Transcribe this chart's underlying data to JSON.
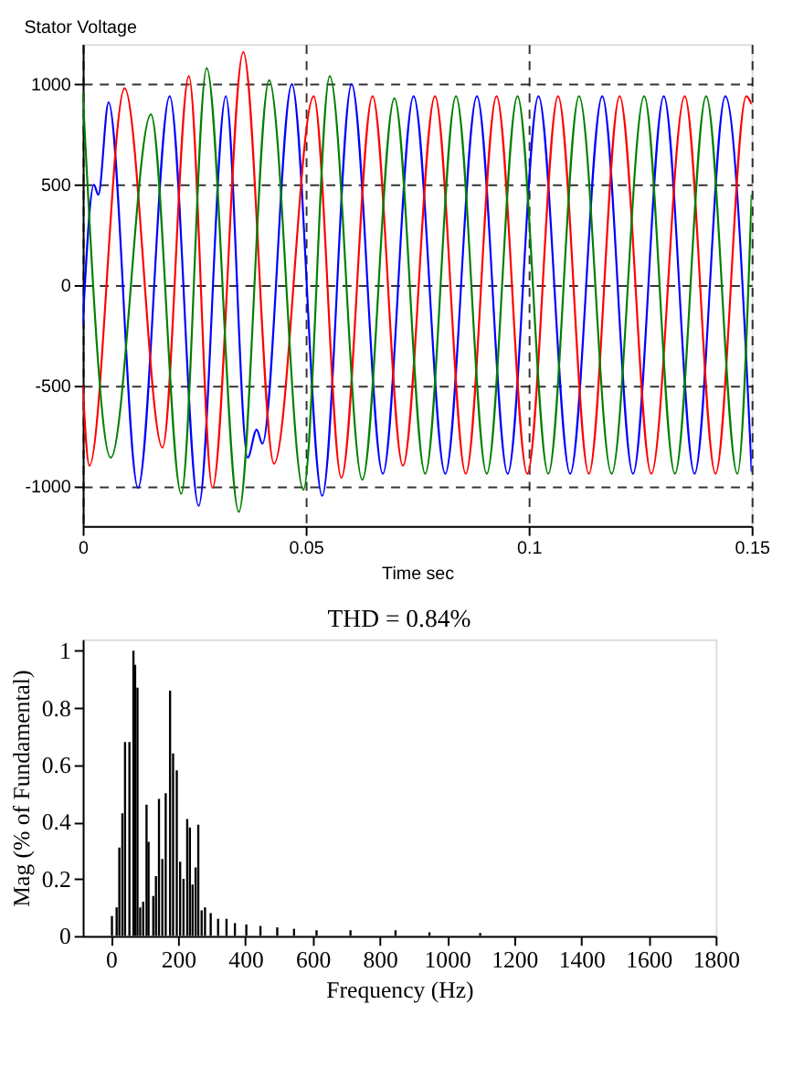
{
  "chart_data": [
    {
      "type": "line",
      "title": "Stator Voltage",
      "xlabel": "Time sec",
      "xlim": [
        0,
        0.15
      ],
      "xticks": [
        0,
        0.05,
        0.1,
        0.15
      ],
      "ylim": [
        -1200,
        1200
      ],
      "yticks": [
        -1000,
        -500,
        0,
        500,
        1000
      ],
      "grid": true,
      "marker": "none",
      "line_style": "solid",
      "series": [
        {
          "color": "#0000ff",
          "x": [
            0,
            0.0025,
            0.0035,
            0.0058,
            0.0124,
            0.0195,
            0.026,
            0.0321,
            0.037,
            0.039,
            0.0403,
            0.0469,
            0.0537,
            0.0603,
            0.0673,
            0.0742,
            0.0813,
            0.0884,
            0.0953,
            0.1022,
            0.1093,
            0.1165,
            0.1234,
            0.1303,
            0.1372,
            0.1441,
            0.15
          ],
          "values": [
            -200,
            500,
            450,
            910,
            -1010,
            940,
            -1100,
            940,
            -860,
            -720,
            -790,
            1000,
            -1050,
            1000,
            -940,
            940,
            -940,
            940,
            -940,
            940,
            -940,
            940,
            -940,
            940,
            -940,
            940,
            -930
          ]
        },
        {
          "color": "#ff0000",
          "x": [
            0,
            0.0015,
            0.0094,
            0.0179,
            0.0238,
            0.0291,
            0.036,
            0.0429,
            0.0518,
            0.058,
            0.065,
            0.0718,
            0.079,
            0.0859,
            0.0928,
            0.0997,
            0.1066,
            0.1135,
            0.1204,
            0.1275,
            0.135,
            0.1419,
            0.1488,
            0.15
          ],
          "values": [
            -500,
            -900,
            980,
            -810,
            1040,
            -1010,
            1160,
            -890,
            940,
            -960,
            940,
            -900,
            940,
            -940,
            940,
            -940,
            940,
            -940,
            940,
            -940,
            940,
            -940,
            940,
            900
          ]
        },
        {
          "color": "#008000",
          "x": [
            0,
            0.0063,
            0.0153,
            0.0221,
            0.0278,
            0.035,
            0.0418,
            0.0495,
            0.0554,
            0.0627,
            0.0699,
            0.0768,
            0.0837,
            0.0906,
            0.0975,
            0.1044,
            0.1113,
            0.1186,
            0.1259,
            0.1328,
            0.1398,
            0.1468,
            0.15
          ],
          "values": [
            960,
            -860,
            850,
            -1040,
            1080,
            -1130,
            1020,
            -1020,
            1040,
            -970,
            930,
            -940,
            940,
            -940,
            940,
            -940,
            940,
            -940,
            940,
            -940,
            940,
            -940,
            450
          ]
        }
      ]
    },
    {
      "type": "bar",
      "title": "THD = 0.84%",
      "xlabel": "Frequency (Hz)",
      "ylabel": "Mag (% of Fundamental)",
      "xlim": [
        -84,
        1800
      ],
      "xticks": [
        0,
        200,
        400,
        600,
        800,
        1000,
        1200,
        1400,
        1600,
        1800
      ],
      "ylim": [
        0,
        1.04
      ],
      "yticks": [
        0,
        0.2,
        0.4,
        0.6,
        0.8,
        1
      ],
      "grid": false,
      "color": "#000000",
      "x": [
        3,
        17,
        25,
        34,
        42,
        55,
        67,
        72,
        79,
        87,
        96,
        106,
        112,
        126,
        134,
        143,
        153,
        163,
        176,
        185,
        196,
        206,
        216,
        227,
        235,
        243,
        252,
        260,
        270,
        280,
        297,
        319,
        344,
        369,
        403,
        445,
        495,
        545,
        612,
        713,
        847,
        948,
        1099
      ],
      "values": [
        0.07,
        0.1,
        0.31,
        0.43,
        0.68,
        0.68,
        1.0,
        0.95,
        0.87,
        0.1,
        0.12,
        0.46,
        0.33,
        0.14,
        0.21,
        0.48,
        0.27,
        0.5,
        0.86,
        0.64,
        0.58,
        0.26,
        0.2,
        0.41,
        0.38,
        0.18,
        0.24,
        0.39,
        0.09,
        0.1,
        0.08,
        0.06,
        0.06,
        0.045,
        0.04,
        0.035,
        0.03,
        0.025,
        0.02,
        0.02,
        0.02,
        0.013,
        0.01
      ]
    }
  ]
}
